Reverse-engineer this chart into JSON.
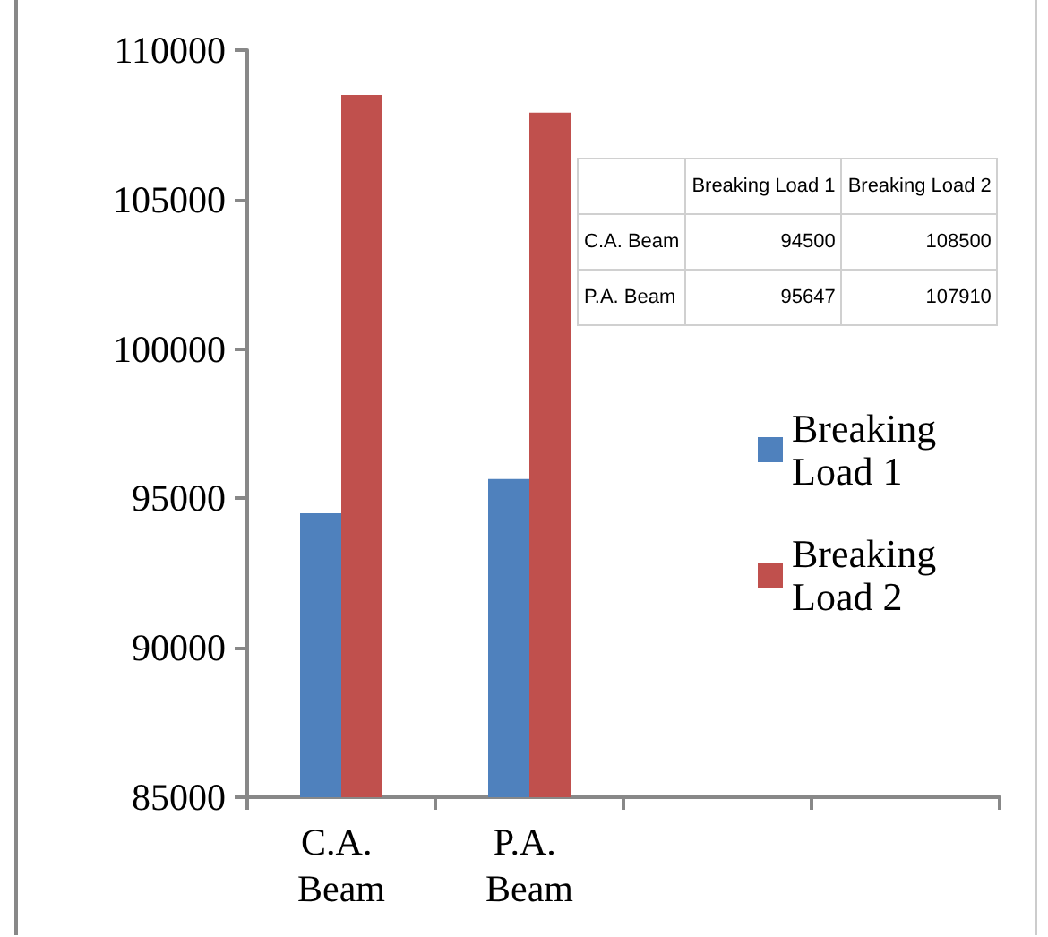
{
  "chart_data": {
    "type": "bar",
    "categories": [
      "C.A. Beam",
      "P.A. Beam",
      null,
      null
    ],
    "series": [
      {
        "name": "Breaking Load 1",
        "color": "#4f81bd",
        "values": [
          94500,
          95647,
          null,
          null
        ]
      },
      {
        "name": "Breaking Load 2",
        "color": "#c0504d",
        "values": [
          108500,
          107910,
          null,
          null
        ]
      }
    ],
    "ylim": [
      85000,
      110000
    ],
    "yticks": [
      85000,
      90000,
      95000,
      100000,
      105000,
      110000
    ],
    "grid": false,
    "legend": "right",
    "annotations": [
      "94500",
      "108500",
      "95647",
      "107910"
    ]
  }
}
